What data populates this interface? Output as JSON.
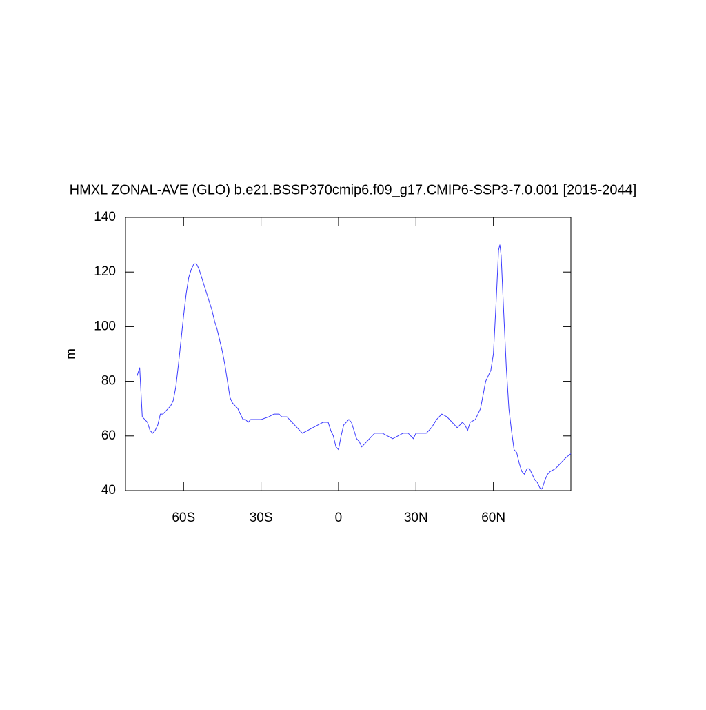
{
  "chart_data": {
    "type": "line",
    "title": "HMXL ZONAL-AVE (GLO) b.e21.BSSP370cmip6.f09_g17.CMIP6-SSP3-7.0.001 [2015-2044]",
    "y_label": "m",
    "x": [
      -78,
      -77,
      -76,
      -75,
      -74,
      -73,
      -72,
      -71,
      -70,
      -69,
      -68,
      -67,
      -66,
      -65,
      -64,
      -63,
      -62,
      -61,
      -60,
      -59,
      -58,
      -57,
      -56,
      -55,
      -54,
      -53,
      -52,
      -51,
      -50,
      -49,
      -48,
      -47,
      -46,
      -45,
      -44,
      -43,
      -42,
      -41,
      -40,
      -39,
      -38,
      -37,
      -36,
      -35,
      -34,
      -33,
      -30,
      -27,
      -25,
      -23,
      -22,
      -20,
      -18,
      -16,
      -14,
      -12,
      -10,
      -8,
      -6,
      -4,
      -3,
      -2,
      -1,
      0,
      1,
      2,
      3,
      4,
      5,
      6,
      7,
      8,
      9,
      10,
      11,
      12,
      13,
      14,
      15,
      17,
      19,
      21,
      23,
      25,
      27,
      28,
      29,
      30,
      32,
      34,
      36,
      38,
      40,
      42,
      44,
      46,
      48,
      49,
      50,
      51,
      53,
      55,
      56,
      57,
      58,
      59,
      60,
      61,
      62,
      62.5,
      63,
      64,
      65,
      66,
      67,
      68,
      69,
      70,
      71,
      72,
      73,
      74,
      75,
      76,
      77,
      78,
      78.5,
      79,
      80,
      81,
      82,
      84,
      86,
      88,
      90
    ],
    "series": [
      {
        "color": "#3b3bff",
        "values": [
          82,
          85,
          67,
          66,
          65,
          62,
          61,
          62,
          64,
          68,
          68,
          69,
          70,
          71,
          73,
          78,
          86,
          95,
          104,
          112,
          118,
          121,
          123,
          123,
          121,
          118,
          115,
          112,
          109,
          106,
          102,
          99,
          95,
          91,
          86,
          80,
          74,
          72,
          71,
          70,
          68,
          66,
          66,
          65,
          66,
          66,
          66,
          67,
          68,
          68,
          67,
          67,
          65,
          63,
          61,
          62,
          63,
          64,
          65,
          65,
          62,
          60,
          56,
          55,
          60,
          64,
          65,
          66,
          65,
          62,
          59,
          58,
          56,
          57,
          58,
          59,
          60,
          61,
          61,
          61,
          60,
          59,
          60,
          61,
          61,
          60,
          59,
          61,
          61,
          61,
          63,
          66,
          68,
          67,
          65,
          63,
          65,
          64,
          62,
          65,
          66,
          70,
          75,
          80,
          82,
          84,
          90,
          108,
          128,
          130,
          126,
          105,
          85,
          70,
          62,
          55,
          54,
          50,
          47,
          46,
          48,
          48,
          46,
          44,
          43,
          41,
          40.5,
          41,
          44,
          46,
          47,
          48,
          50,
          52,
          53.5
        ]
      }
    ],
    "xlim": [
      -82.5,
      90
    ],
    "xticks": [
      {
        "value": -60,
        "label": "60S"
      },
      {
        "value": -30,
        "label": "30S"
      },
      0,
      {
        "value": 30,
        "label": "30N"
      },
      {
        "value": 60,
        "label": "60N"
      }
    ],
    "ylim": [
      40,
      140
    ],
    "yticks": [
      40,
      60,
      80,
      100,
      120,
      140
    ]
  }
}
